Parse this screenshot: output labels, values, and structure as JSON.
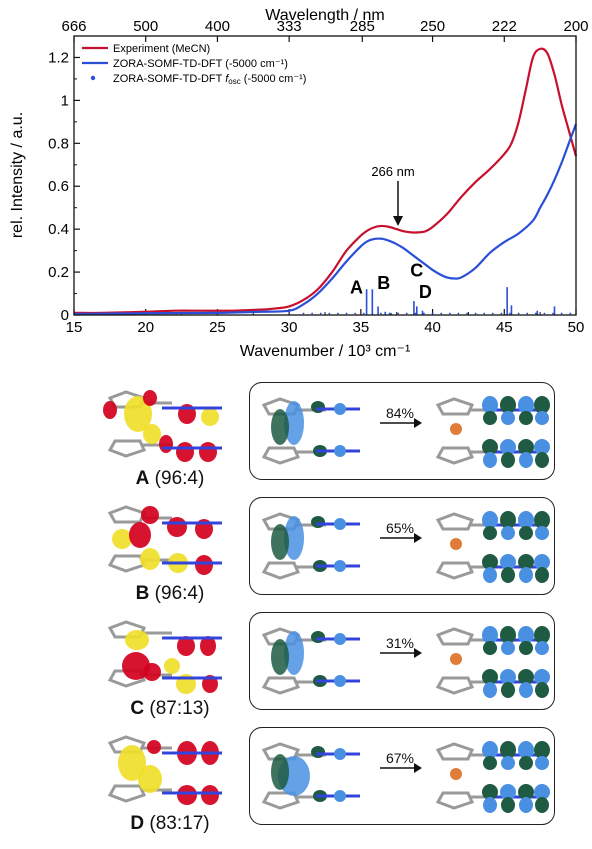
{
  "chart_data": {
    "type": "line",
    "xlabel": "Wavenumber / 10³ cm⁻¹",
    "ylabel": "rel. Intensity / a.u.",
    "top_axis_label": "Wavelength / nm",
    "xlim": [
      15,
      50
    ],
    "ylim": [
      0,
      1.3
    ],
    "x_ticks": [
      15,
      20,
      25,
      30,
      35,
      40,
      45,
      50
    ],
    "y_ticks": [
      0,
      0.2,
      0.4,
      0.6,
      0.8,
      1,
      1.2
    ],
    "y_tick_labels": [
      "0",
      "0.2",
      "0.4",
      "0.6",
      "0.8",
      "1",
      "1.2"
    ],
    "top_ticks": [
      {
        "label": "666",
        "wavenumber": 15.0
      },
      {
        "label": "500",
        "wavenumber": 20.0
      },
      {
        "label": "400",
        "wavenumber": 25.0
      },
      {
        "label": "333",
        "wavenumber": 30.0
      },
      {
        "label": "285",
        "wavenumber": 35.1
      },
      {
        "label": "250",
        "wavenumber": 40.0
      },
      {
        "label": "222",
        "wavenumber": 45.0
      },
      {
        "label": "200",
        "wavenumber": 50.0
      }
    ],
    "series": [
      {
        "name": "Experiment (MeCN)",
        "color": "#c8102e",
        "x": [
          15,
          17,
          20,
          22,
          24,
          26,
          28,
          29,
          30,
          31,
          32,
          33,
          34,
          35,
          35.5,
          36,
          36.5,
          37,
          37.5,
          38,
          38.5,
          39,
          39.5,
          40,
          41,
          42,
          43,
          44,
          45,
          45.5,
          46,
          46.5,
          47,
          47.5,
          48,
          48.5,
          49,
          49.5,
          50
        ],
        "y": [
          0.01,
          0.01,
          0.015,
          0.02,
          0.02,
          0.02,
          0.025,
          0.03,
          0.04,
          0.07,
          0.12,
          0.2,
          0.3,
          0.37,
          0.395,
          0.41,
          0.415,
          0.41,
          0.4,
          0.39,
          0.385,
          0.385,
          0.39,
          0.41,
          0.47,
          0.55,
          0.62,
          0.68,
          0.75,
          0.8,
          0.9,
          1.05,
          1.2,
          1.24,
          1.22,
          1.12,
          0.98,
          0.86,
          0.74
        ]
      },
      {
        "name": "ZORA-SOMF-TD-DFT (-5000 cm⁻¹)",
        "color": "#2a4fd6",
        "x": [
          15,
          20,
          25,
          28,
          30,
          31,
          32,
          33,
          34,
          35,
          35.5,
          36,
          36.5,
          37,
          37.5,
          38,
          38.5,
          39,
          39.5,
          40,
          40.5,
          41,
          41.5,
          42,
          43,
          44,
          45,
          46,
          47,
          47.5,
          48,
          48.5,
          49,
          49.5,
          50
        ],
        "y": [
          0.005,
          0.008,
          0.01,
          0.015,
          0.02,
          0.05,
          0.1,
          0.17,
          0.25,
          0.32,
          0.345,
          0.355,
          0.355,
          0.345,
          0.33,
          0.31,
          0.285,
          0.26,
          0.235,
          0.21,
          0.19,
          0.175,
          0.17,
          0.175,
          0.22,
          0.29,
          0.34,
          0.38,
          0.44,
          0.5,
          0.56,
          0.63,
          0.71,
          0.8,
          0.89
        ]
      }
    ],
    "stick_series": {
      "name": "ZORA-SOMF-TD-DFT f_osc (-5000 cm⁻¹)",
      "legend_prefix": "ZORA-SOMF-TD-DFT ",
      "legend_italic": "f",
      "legend_sub": "osc",
      "legend_suffix": " (-5000 cm⁻¹)",
      "color": "#2a4fd6",
      "x": [
        35.4,
        35.8,
        36.2,
        36.7,
        37.1,
        38.7,
        38.9,
        39.3,
        45.2,
        45.5,
        47.3,
        48.5
      ],
      "y": [
        0.12,
        0.12,
        0.04,
        0.015,
        0.01,
        0.065,
        0.04,
        0.02,
        0.13,
        0.045,
        0.02,
        0.04
      ]
    },
    "peak_labels": [
      {
        "text": "A",
        "x": 34.7,
        "y": 0.1
      },
      {
        "text": "B",
        "x": 36.6,
        "y": 0.12
      },
      {
        "text": "C",
        "x": 38.9,
        "y": 0.18
      },
      {
        "text": "D",
        "x": 39.5,
        "y": 0.08
      }
    ],
    "annotation": {
      "text": "266 nm",
      "x": 37.6
    }
  },
  "panels": [
    {
      "letter": "A",
      "ratio": " (96:4)",
      "percent": "84%"
    },
    {
      "letter": "B",
      "ratio": " (96:4)",
      "percent": "65%"
    },
    {
      "letter": "C",
      "ratio": " (87:13)",
      "percent": "31%"
    },
    {
      "letter": "D",
      "ratio": " (83:17)",
      "percent": "67%"
    }
  ],
  "colors": {
    "density_positive": "#d4001e",
    "density_negative": "#f0e02a",
    "orbital_dark": "#1f5a42",
    "orbital_light": "#4a90e2",
    "ligand_blue": "#3344dd",
    "metal": "#e07b39",
    "frame": "#9a9a9a"
  }
}
